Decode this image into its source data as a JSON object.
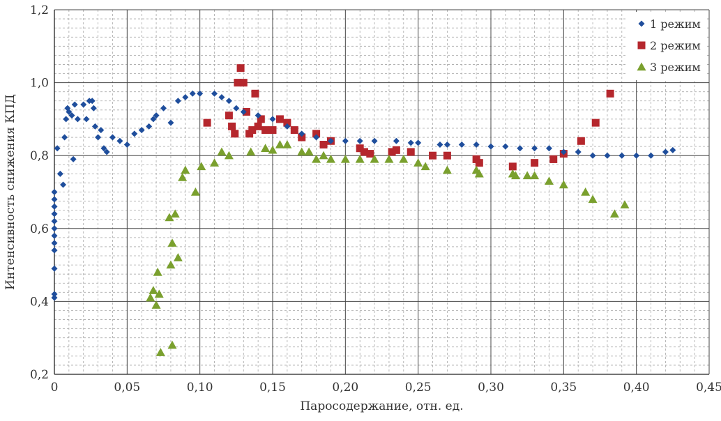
{
  "chart_data": {
    "type": "scatter",
    "xlabel": "Паросодержание, отн. ед.",
    "ylabel": "Интенсивность снижения КПД",
    "xlim": [
      0,
      0.45
    ],
    "ylim": [
      0.2,
      1.2
    ],
    "x_ticks": [
      "0",
      "0,05",
      "0,10",
      "0,15",
      "0,20",
      "0,25",
      "0,30",
      "0,35",
      "0,40",
      "0,45"
    ],
    "y_ticks": [
      "0,2",
      "0,4",
      "0,6",
      "0,8",
      "1,0",
      "1,2"
    ],
    "grid": true,
    "legend_position": "top-right",
    "series": [
      {
        "name": "1 режим",
        "marker": "diamond",
        "color": "#1f4e9c",
        "points": [
          [
            0.0,
            0.41
          ],
          [
            0.0,
            0.42
          ],
          [
            0.0,
            0.49
          ],
          [
            0.0,
            0.54
          ],
          [
            0.0,
            0.56
          ],
          [
            0.0,
            0.58
          ],
          [
            0.0,
            0.6
          ],
          [
            0.0,
            0.62
          ],
          [
            0.0,
            0.64
          ],
          [
            0.0,
            0.66
          ],
          [
            0.0,
            0.68
          ],
          [
            0.0,
            0.7
          ],
          [
            0.002,
            0.82
          ],
          [
            0.004,
            0.75
          ],
          [
            0.006,
            0.72
          ],
          [
            0.007,
            0.85
          ],
          [
            0.008,
            0.9
          ],
          [
            0.009,
            0.93
          ],
          [
            0.01,
            0.92
          ],
          [
            0.012,
            0.91
          ],
          [
            0.013,
            0.79
          ],
          [
            0.014,
            0.94
          ],
          [
            0.016,
            0.9
          ],
          [
            0.02,
            0.94
          ],
          [
            0.022,
            0.9
          ],
          [
            0.024,
            0.95
          ],
          [
            0.026,
            0.95
          ],
          [
            0.027,
            0.93
          ],
          [
            0.028,
            0.88
          ],
          [
            0.03,
            0.85
          ],
          [
            0.032,
            0.87
          ],
          [
            0.034,
            0.82
          ],
          [
            0.036,
            0.81
          ],
          [
            0.04,
            0.85
          ],
          [
            0.045,
            0.84
          ],
          [
            0.05,
            0.83
          ],
          [
            0.055,
            0.86
          ],
          [
            0.06,
            0.87
          ],
          [
            0.065,
            0.88
          ],
          [
            0.068,
            0.9
          ],
          [
            0.07,
            0.91
          ],
          [
            0.075,
            0.93
          ],
          [
            0.08,
            0.89
          ],
          [
            0.085,
            0.95
          ],
          [
            0.09,
            0.96
          ],
          [
            0.095,
            0.97
          ],
          [
            0.1,
            0.97
          ],
          [
            0.11,
            0.97
          ],
          [
            0.115,
            0.96
          ],
          [
            0.12,
            0.95
          ],
          [
            0.125,
            0.93
          ],
          [
            0.13,
            0.92
          ],
          [
            0.14,
            0.91
          ],
          [
            0.15,
            0.9
          ],
          [
            0.16,
            0.88
          ],
          [
            0.17,
            0.86
          ],
          [
            0.18,
            0.85
          ],
          [
            0.19,
            0.84
          ],
          [
            0.2,
            0.84
          ],
          [
            0.21,
            0.84
          ],
          [
            0.22,
            0.84
          ],
          [
            0.235,
            0.84
          ],
          [
            0.245,
            0.835
          ],
          [
            0.25,
            0.835
          ],
          [
            0.265,
            0.83
          ],
          [
            0.27,
            0.83
          ],
          [
            0.28,
            0.83
          ],
          [
            0.29,
            0.83
          ],
          [
            0.3,
            0.825
          ],
          [
            0.31,
            0.825
          ],
          [
            0.32,
            0.82
          ],
          [
            0.33,
            0.82
          ],
          [
            0.34,
            0.82
          ],
          [
            0.35,
            0.81
          ],
          [
            0.36,
            0.81
          ],
          [
            0.37,
            0.8
          ],
          [
            0.38,
            0.8
          ],
          [
            0.39,
            0.8
          ],
          [
            0.4,
            0.8
          ],
          [
            0.41,
            0.8
          ],
          [
            0.42,
            0.81
          ],
          [
            0.425,
            0.815
          ]
        ]
      },
      {
        "name": "2 режим",
        "marker": "square",
        "color": "#b5272d",
        "points": [
          [
            0.105,
            0.89
          ],
          [
            0.12,
            0.91
          ],
          [
            0.122,
            0.88
          ],
          [
            0.124,
            0.86
          ],
          [
            0.126,
            1.0
          ],
          [
            0.128,
            1.04
          ],
          [
            0.13,
            1.0
          ],
          [
            0.132,
            0.92
          ],
          [
            0.134,
            0.86
          ],
          [
            0.136,
            0.87
          ],
          [
            0.138,
            0.97
          ],
          [
            0.14,
            0.88
          ],
          [
            0.142,
            0.9
          ],
          [
            0.145,
            0.87
          ],
          [
            0.15,
            0.87
          ],
          [
            0.155,
            0.9
          ],
          [
            0.16,
            0.89
          ],
          [
            0.165,
            0.87
          ],
          [
            0.17,
            0.85
          ],
          [
            0.18,
            0.86
          ],
          [
            0.185,
            0.83
          ],
          [
            0.19,
            0.84
          ],
          [
            0.21,
            0.82
          ],
          [
            0.213,
            0.81
          ],
          [
            0.217,
            0.805
          ],
          [
            0.232,
            0.81
          ],
          [
            0.235,
            0.815
          ],
          [
            0.245,
            0.81
          ],
          [
            0.26,
            0.8
          ],
          [
            0.27,
            0.8
          ],
          [
            0.29,
            0.79
          ],
          [
            0.292,
            0.78
          ],
          [
            0.315,
            0.77
          ],
          [
            0.33,
            0.78
          ],
          [
            0.343,
            0.79
          ],
          [
            0.35,
            0.805
          ],
          [
            0.362,
            0.84
          ],
          [
            0.372,
            0.89
          ],
          [
            0.382,
            0.97
          ]
        ]
      },
      {
        "name": "3 режим",
        "marker": "triangle",
        "color": "#7aa02e",
        "points": [
          [
            0.066,
            0.41
          ],
          [
            0.068,
            0.43
          ],
          [
            0.07,
            0.39
          ],
          [
            0.071,
            0.48
          ],
          [
            0.072,
            0.42
          ],
          [
            0.073,
            0.26
          ],
          [
            0.079,
            0.63
          ],
          [
            0.08,
            0.5
          ],
          [
            0.081,
            0.28
          ],
          [
            0.081,
            0.56
          ],
          [
            0.083,
            0.64
          ],
          [
            0.085,
            0.52
          ],
          [
            0.088,
            0.74
          ],
          [
            0.09,
            0.76
          ],
          [
            0.097,
            0.7
          ],
          [
            0.101,
            0.77
          ],
          [
            0.11,
            0.78
          ],
          [
            0.115,
            0.81
          ],
          [
            0.12,
            0.8
          ],
          [
            0.135,
            0.81
          ],
          [
            0.145,
            0.82
          ],
          [
            0.15,
            0.815
          ],
          [
            0.155,
            0.83
          ],
          [
            0.16,
            0.83
          ],
          [
            0.17,
            0.81
          ],
          [
            0.175,
            0.81
          ],
          [
            0.18,
            0.79
          ],
          [
            0.185,
            0.8
          ],
          [
            0.19,
            0.79
          ],
          [
            0.2,
            0.79
          ],
          [
            0.21,
            0.79
          ],
          [
            0.22,
            0.79
          ],
          [
            0.23,
            0.79
          ],
          [
            0.24,
            0.79
          ],
          [
            0.25,
            0.78
          ],
          [
            0.255,
            0.77
          ],
          [
            0.27,
            0.76
          ],
          [
            0.29,
            0.76
          ],
          [
            0.292,
            0.75
          ],
          [
            0.315,
            0.75
          ],
          [
            0.317,
            0.745
          ],
          [
            0.325,
            0.745
          ],
          [
            0.33,
            0.745
          ],
          [
            0.34,
            0.73
          ],
          [
            0.35,
            0.72
          ],
          [
            0.365,
            0.7
          ],
          [
            0.37,
            0.68
          ],
          [
            0.385,
            0.64
          ],
          [
            0.392,
            0.665
          ]
        ]
      }
    ]
  }
}
